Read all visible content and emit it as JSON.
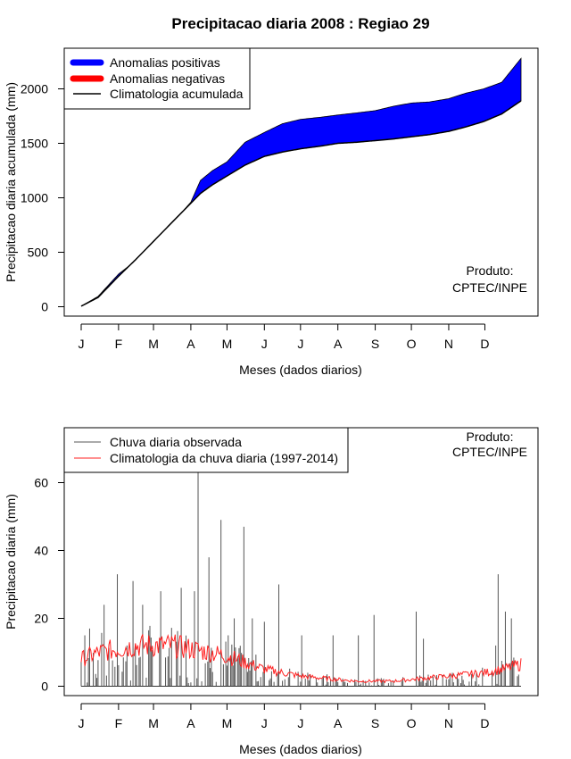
{
  "title": "Precipitacao diaria 2008 : Regiao 29",
  "months": [
    "J",
    "F",
    "M",
    "A",
    "M",
    "J",
    "J",
    "A",
    "S",
    "O",
    "N",
    "D"
  ],
  "colors": {
    "positive": "#0000ff",
    "negative": "#ff0000",
    "line": "#000000",
    "daily": "#555555",
    "clim_daily": "#ff2020"
  },
  "chart_data": [
    {
      "type": "area",
      "ylabel": "Precipitacao diaria acumulada (mm)",
      "xlabel": "Meses (dados diarios)",
      "ylim": [
        0,
        2300
      ],
      "yticks": [
        0,
        500,
        1000,
        1500,
        2000
      ],
      "product_label": [
        "Produto:",
        "CPTEC/INPE"
      ],
      "legend": [
        "Anomalias positivas",
        "Anomalias negativas",
        "Climatologia acumulada"
      ],
      "day": [
        1,
        15,
        32,
        46,
        61,
        76,
        92,
        100,
        110,
        122,
        137,
        153,
        168,
        183,
        200,
        214,
        230,
        245,
        260,
        275,
        290,
        306,
        320,
        335,
        350,
        366
      ],
      "observed_accumulated": [
        5,
        95,
        300,
        420,
        580,
        760,
        960,
        1160,
        1250,
        1330,
        1510,
        1600,
        1680,
        1720,
        1740,
        1760,
        1780,
        1800,
        1840,
        1870,
        1880,
        1910,
        1960,
        2000,
        2060,
        2280
      ],
      "climatology_accumulated": [
        5,
        85,
        280,
        430,
        600,
        770,
        950,
        1040,
        1120,
        1200,
        1300,
        1380,
        1420,
        1450,
        1475,
        1500,
        1510,
        1525,
        1540,
        1560,
        1580,
        1610,
        1650,
        1700,
        1770,
        1890
      ]
    },
    {
      "type": "bar",
      "ylabel": "Precipitacao diaria (mm)",
      "xlabel": "Meses (dados diarios)",
      "ylim": [
        0,
        62
      ],
      "yticks": [
        0,
        20,
        40,
        60
      ],
      "product_label": [
        "Produto:",
        "CPTEC/INPE"
      ],
      "legend": [
        "Chuva diaria observada",
        "Climatologia da chuva diaria (1997-2014)"
      ],
      "peak_days": [
        4,
        8,
        20,
        31,
        44,
        52,
        67,
        84,
        95,
        98,
        107,
        117,
        123,
        128,
        136,
        143,
        153,
        165,
        184,
        210,
        231,
        244,
        279,
        285,
        345,
        347,
        353,
        358
      ],
      "peak_values": [
        15,
        17,
        24,
        33,
        31,
        24,
        28,
        29,
        28,
        63,
        38,
        49,
        15,
        20,
        47,
        20,
        19,
        30,
        15,
        15,
        15,
        21,
        22,
        14,
        12,
        33,
        22,
        20
      ],
      "clim_days": [
        1,
        16,
        32,
        46,
        61,
        76,
        92,
        107,
        122,
        137,
        153,
        168,
        183,
        198,
        214,
        229,
        245,
        260,
        275,
        290,
        306,
        321,
        336,
        351,
        366
      ],
      "clim_values": [
        8,
        10,
        11,
        12,
        12,
        12,
        11,
        10,
        9,
        7,
        5,
        4,
        3,
        2.5,
        2,
        1.5,
        1.5,
        1.5,
        2,
        2.5,
        3,
        3.5,
        4,
        5,
        6.5
      ]
    }
  ]
}
